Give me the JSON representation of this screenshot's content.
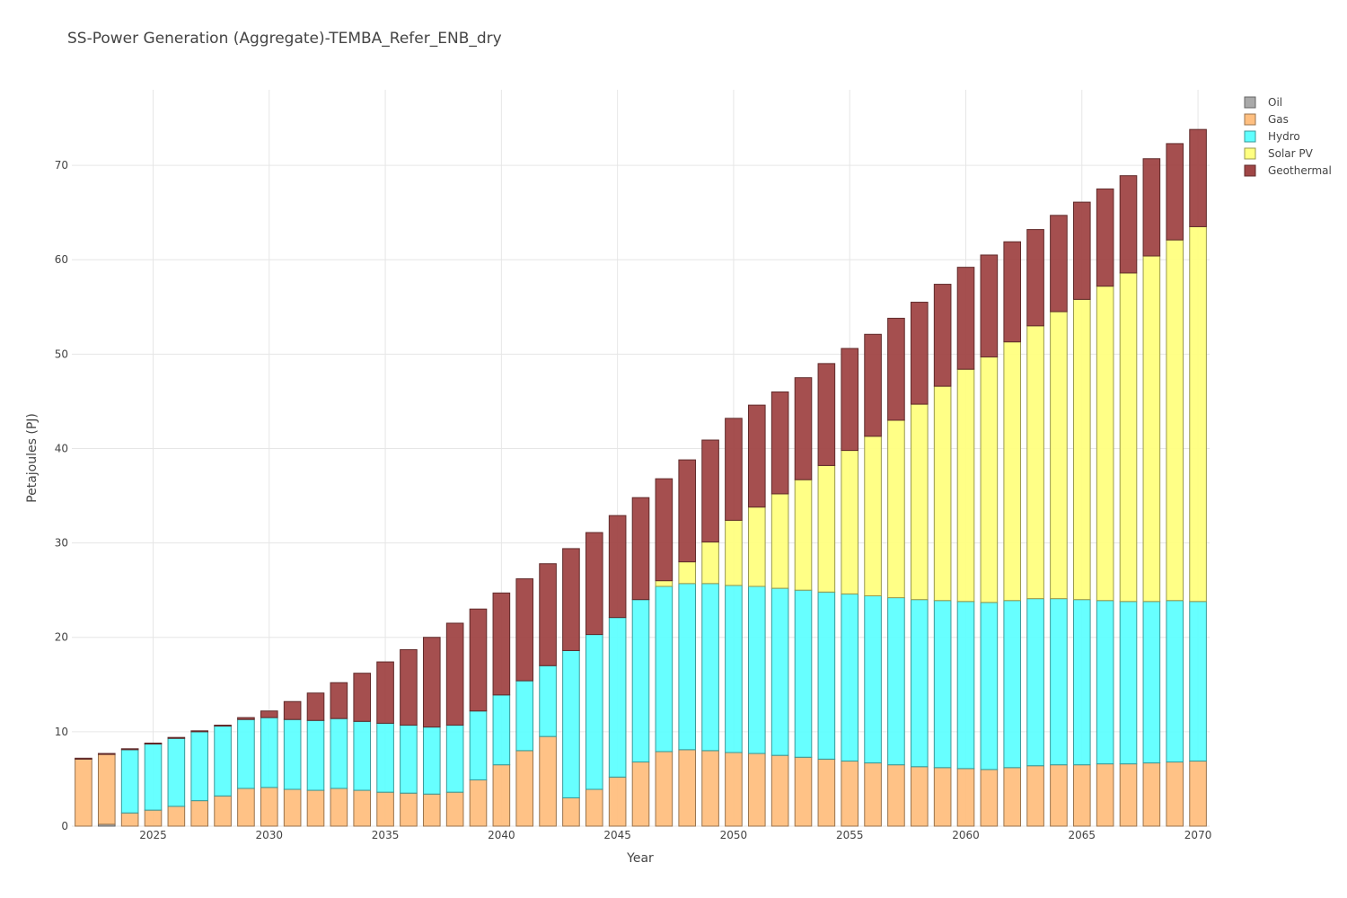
{
  "chart_data": {
    "type": "bar",
    "stacked": true,
    "title": "SS-Power Generation (Aggregate)-TEMBA_Refer_ENB_dry",
    "xlabel": "Year",
    "ylabel": "Petajoules (PJ)",
    "xlim": [
      2022,
      2070
    ],
    "ylim": [
      0,
      78
    ],
    "xticks": [
      2025,
      2030,
      2035,
      2040,
      2045,
      2050,
      2055,
      2060,
      2065,
      2070
    ],
    "yticks": [
      0,
      10,
      20,
      30,
      40,
      50,
      60,
      70
    ],
    "grid": true,
    "legend_position": "top-right",
    "categories": [
      2022,
      2023,
      2024,
      2025,
      2026,
      2027,
      2028,
      2029,
      2030,
      2031,
      2032,
      2033,
      2034,
      2035,
      2036,
      2037,
      2038,
      2039,
      2040,
      2041,
      2042,
      2043,
      2044,
      2045,
      2046,
      2047,
      2048,
      2049,
      2050,
      2051,
      2052,
      2053,
      2054,
      2055,
      2056,
      2057,
      2058,
      2059,
      2060,
      2061,
      2062,
      2063,
      2064,
      2065,
      2066,
      2067,
      2068,
      2069,
      2070
    ],
    "series": [
      {
        "name": "Oil",
        "color": "#a9a9a9",
        "values": [
          0,
          0.2,
          0,
          0,
          0,
          0,
          0,
          0,
          0,
          0,
          0,
          0,
          0,
          0,
          0,
          0,
          0,
          0,
          0,
          0,
          0,
          0,
          0,
          0,
          0,
          0,
          0,
          0,
          0,
          0,
          0,
          0,
          0,
          0,
          0,
          0,
          0,
          0,
          0,
          0,
          0,
          0,
          0,
          0,
          0,
          0,
          0,
          0,
          0
        ]
      },
      {
        "name": "Gas",
        "color": "#ffbf80",
        "values": [
          7.1,
          7.4,
          1.4,
          1.7,
          2.1,
          2.7,
          3.2,
          4.0,
          4.1,
          3.9,
          3.8,
          4.0,
          3.8,
          3.6,
          3.5,
          3.4,
          3.6,
          4.9,
          6.5,
          8.0,
          9.5,
          3.0,
          3.9,
          5.2,
          6.8,
          7.9,
          8.1,
          8.0,
          7.8,
          7.7,
          7.5,
          7.3,
          7.1,
          6.9,
          6.7,
          6.5,
          6.3,
          6.2,
          6.1,
          6.0,
          6.2,
          6.4,
          6.5,
          6.5,
          6.6,
          6.6,
          6.7,
          6.8,
          6.9
        ]
      },
      {
        "name": "Hydro",
        "color": "#5fffff",
        "values": [
          0,
          0,
          6.7,
          7.0,
          7.2,
          7.3,
          7.4,
          7.3,
          7.4,
          7.4,
          7.4,
          7.4,
          7.3,
          7.3,
          7.2,
          7.1,
          7.1,
          7.3,
          7.4,
          7.4,
          7.5,
          15.6,
          16.4,
          16.9,
          17.2,
          17.5,
          17.6,
          17.7,
          17.7,
          17.7,
          17.7,
          17.7,
          17.7,
          17.7,
          17.7,
          17.7,
          17.7,
          17.7,
          17.7,
          17.7,
          17.7,
          17.7,
          17.6,
          17.5,
          17.3,
          17.2,
          17.1,
          17.1,
          16.9
        ]
      },
      {
        "name": "Solar PV",
        "color": "#ffff80",
        "values": [
          0,
          0,
          0,
          0,
          0,
          0,
          0,
          0,
          0,
          0,
          0,
          0,
          0,
          0,
          0,
          0,
          0,
          0,
          0,
          0,
          0,
          0,
          0,
          0,
          0,
          0.6,
          2.3,
          4.4,
          6.9,
          8.4,
          10.0,
          11.7,
          13.4,
          15.2,
          16.9,
          18.8,
          20.7,
          22.7,
          24.6,
          26.0,
          27.4,
          28.9,
          30.4,
          31.8,
          33.3,
          34.8,
          36.6,
          38.2,
          39.7
        ]
      },
      {
        "name": "Geothermal",
        "color": "#a04646",
        "values": [
          0.1,
          0.1,
          0.1,
          0.1,
          0.1,
          0.1,
          0.1,
          0.2,
          0.7,
          1.9,
          2.9,
          3.8,
          5.1,
          6.5,
          8.0,
          9.5,
          10.8,
          10.8,
          10.8,
          10.8,
          10.8,
          10.8,
          10.8,
          10.8,
          10.8,
          10.8,
          10.8,
          10.8,
          10.8,
          10.8,
          10.8,
          10.8,
          10.8,
          10.8,
          10.8,
          10.8,
          10.8,
          10.8,
          10.8,
          10.8,
          10.6,
          10.2,
          10.2,
          10.3,
          10.3,
          10.3,
          10.3,
          10.2,
          10.3
        ]
      }
    ]
  }
}
